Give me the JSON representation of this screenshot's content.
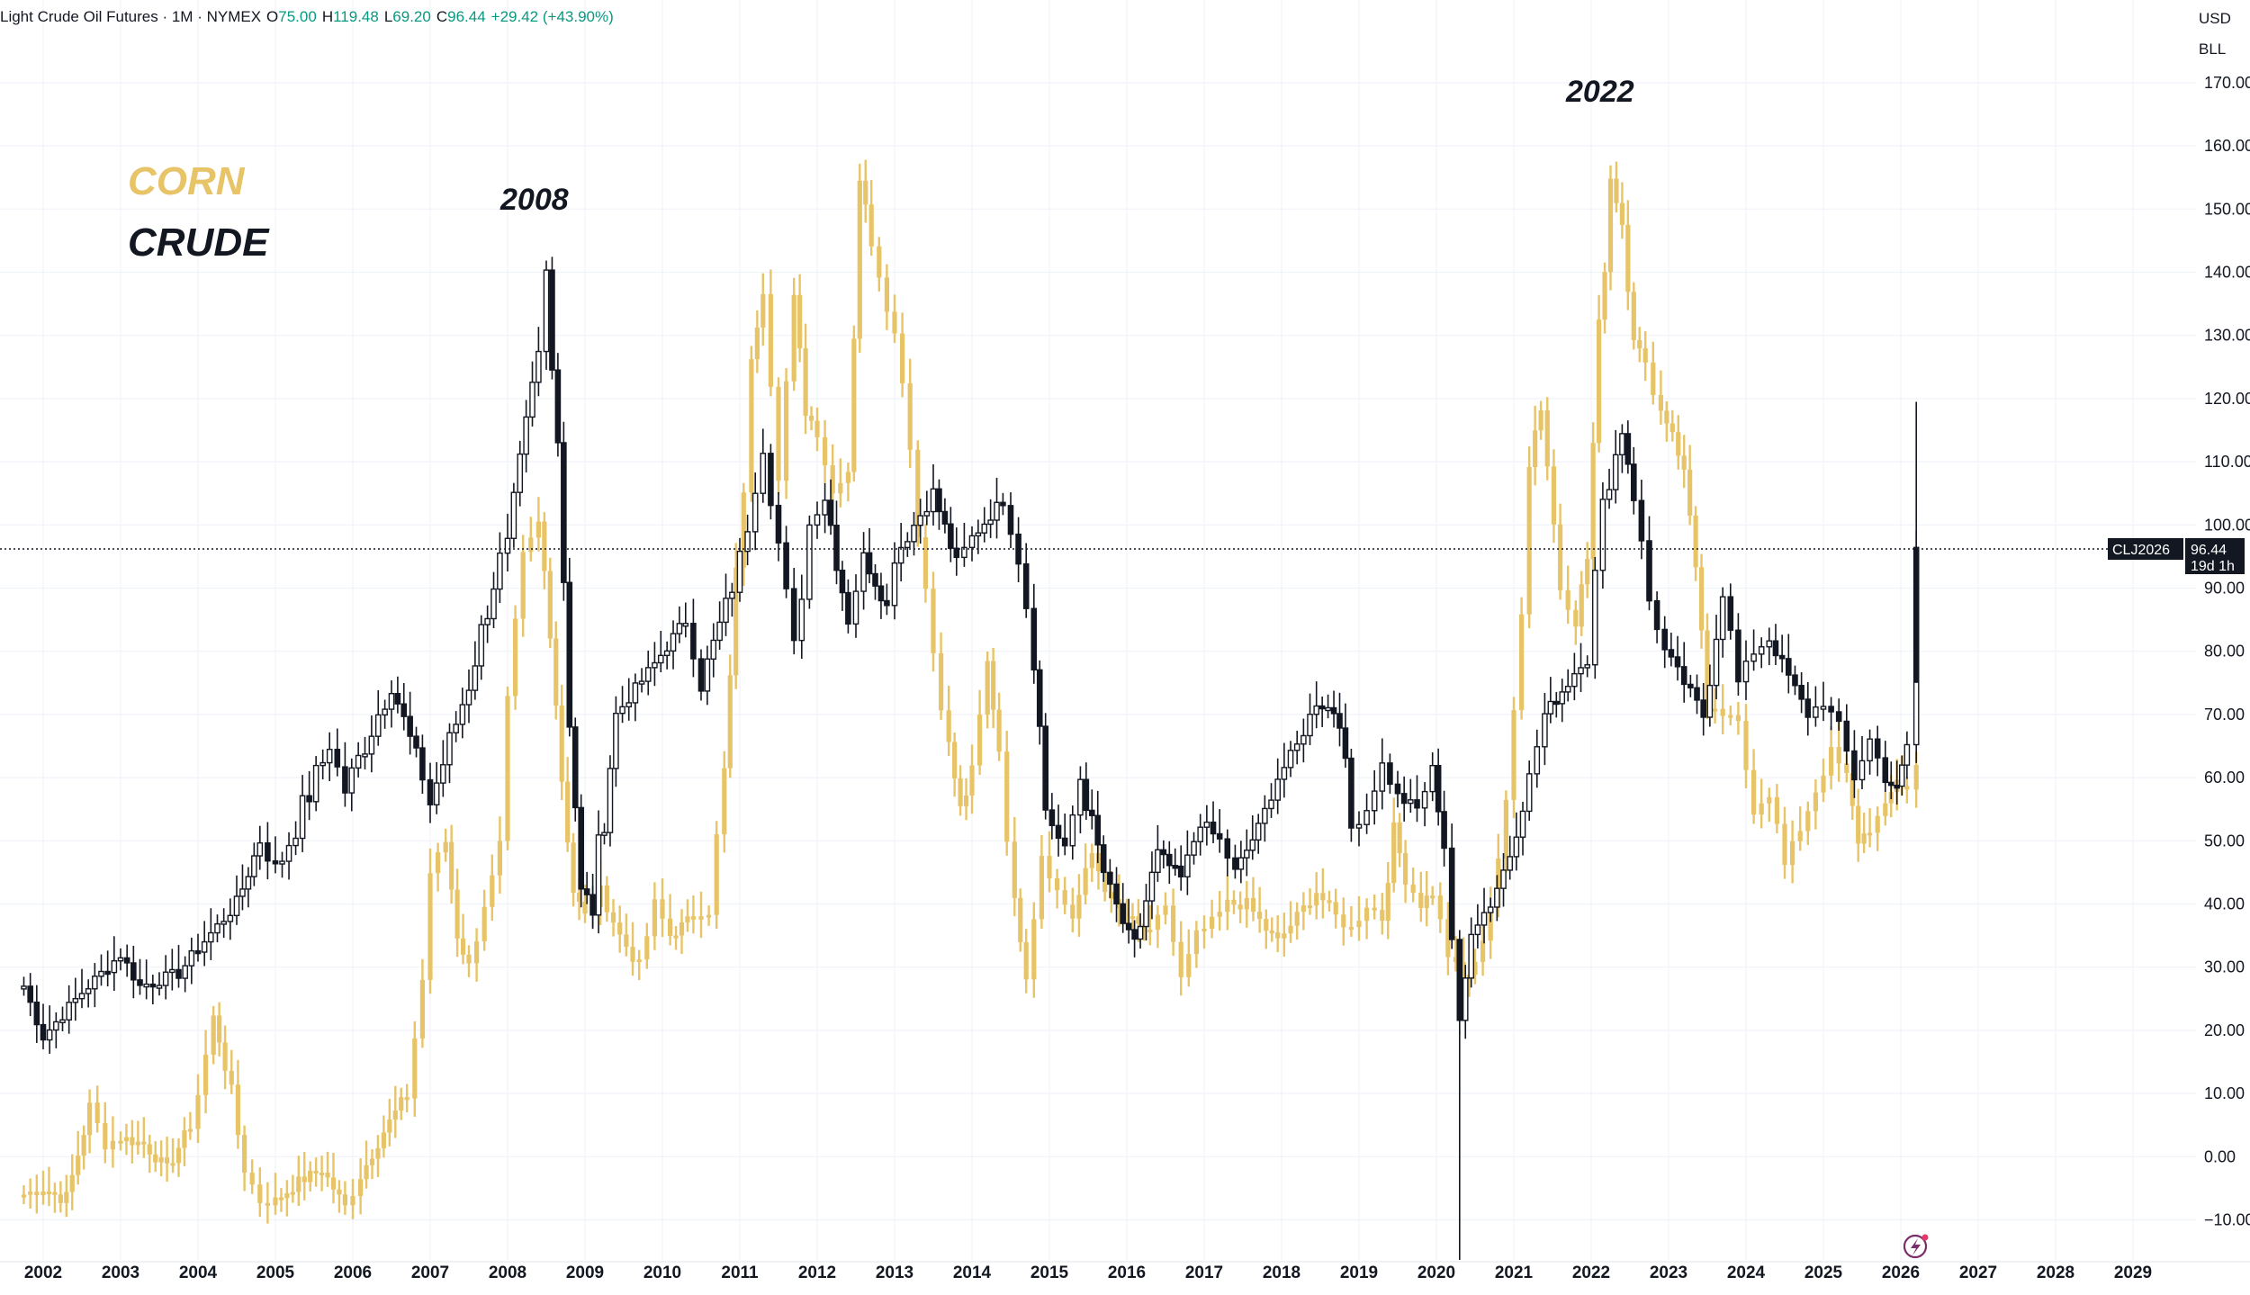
{
  "header": {
    "symbol": "Light Crude Oil Futures · 1M · NYMEX",
    "open_label": "O",
    "open": "75.00",
    "high_label": "H",
    "high": "119.48",
    "low_label": "L",
    "low": "69.20",
    "close_label": "C",
    "close": "96.44",
    "change": "+29.42 (+43.90%)"
  },
  "scale": {
    "currency": "USD",
    "unit": "BLL"
  },
  "price_tag": {
    "ticker": "CLJ2026",
    "price": "96.44",
    "countdown": "19d 1h"
  },
  "legend": {
    "corn": "CORN",
    "crude": "CRUDE"
  },
  "annotations": {
    "peak_2008": "2008",
    "peak_2022": "2022"
  },
  "colors": {
    "corn": "#e8c468",
    "crude": "#131722",
    "grid": "#f0f3fa",
    "accent": "#7b2c6b"
  },
  "icons": {
    "bottom_right": "lightning-icon"
  },
  "chart_data": {
    "type": "candlestick",
    "interval": "1M",
    "ylim": [
      -15,
      175
    ],
    "y_ticks": [
      "170.00",
      "160.00",
      "150.00",
      "140.00",
      "130.00",
      "120.00",
      "110.00",
      "100.00",
      "90.00",
      "80.00",
      "70.00",
      "60.00",
      "50.00",
      "40.00",
      "30.00",
      "20.00",
      "10.00",
      "0.00",
      "−10.00"
    ],
    "x_ticks": [
      "2002",
      "2003",
      "2004",
      "2005",
      "2006",
      "2007",
      "2008",
      "2009",
      "2010",
      "2011",
      "2012",
      "2013",
      "2014",
      "2015",
      "2016",
      "2017",
      "2018",
      "2019",
      "2020",
      "2021",
      "2022",
      "2023",
      "2024",
      "2025",
      "2026",
      "2027",
      "2028",
      "2029"
    ],
    "series": [
      {
        "name": "CRUDE",
        "style": "candles",
        "color": "#131722",
        "points": [
          [
            2001.75,
            27
          ],
          [
            2002.0,
            19
          ],
          [
            2002.5,
            26
          ],
          [
            2003.0,
            32
          ],
          [
            2003.25,
            27
          ],
          [
            2003.75,
            29
          ],
          [
            2004.0,
            33
          ],
          [
            2004.5,
            40
          ],
          [
            2004.8,
            50
          ],
          [
            2005.0,
            45
          ],
          [
            2005.7,
            65
          ],
          [
            2005.9,
            58
          ],
          [
            2006.5,
            75
          ],
          [
            2006.9,
            60
          ],
          [
            2007.0,
            56
          ],
          [
            2007.5,
            75
          ],
          [
            2007.9,
            95
          ],
          [
            2008.0,
            95
          ],
          [
            2008.4,
            127
          ],
          [
            2008.5,
            140
          ],
          [
            2008.65,
            115
          ],
          [
            2008.8,
            70
          ],
          [
            2008.95,
            42
          ],
          [
            2009.1,
            40
          ],
          [
            2009.4,
            70
          ],
          [
            2009.9,
            78
          ],
          [
            2010.3,
            85
          ],
          [
            2010.5,
            75
          ],
          [
            2010.9,
            90
          ],
          [
            2011.1,
            100
          ],
          [
            2011.3,
            113
          ],
          [
            2011.5,
            97
          ],
          [
            2011.7,
            80
          ],
          [
            2011.9,
            100
          ],
          [
            2012.1,
            105
          ],
          [
            2012.4,
            85
          ],
          [
            2012.6,
            95
          ],
          [
            2012.9,
            87
          ],
          [
            2013.0,
            95
          ],
          [
            2013.5,
            105
          ],
          [
            2013.8,
            94
          ],
          [
            2014.0,
            98
          ],
          [
            2014.4,
            104
          ],
          [
            2014.6,
            95
          ],
          [
            2014.8,
            80
          ],
          [
            2014.95,
            55
          ],
          [
            2015.2,
            48
          ],
          [
            2015.4,
            60
          ],
          [
            2015.7,
            45
          ],
          [
            2015.95,
            37
          ],
          [
            2016.1,
            33
          ],
          [
            2016.4,
            48
          ],
          [
            2016.7,
            44
          ],
          [
            2016.95,
            53
          ],
          [
            2017.2,
            50
          ],
          [
            2017.4,
            45
          ],
          [
            2017.7,
            52
          ],
          [
            2017.95,
            60
          ],
          [
            2018.2,
            65
          ],
          [
            2018.45,
            72
          ],
          [
            2018.75,
            70
          ],
          [
            2018.9,
            52
          ],
          [
            2019.1,
            55
          ],
          [
            2019.3,
            62
          ],
          [
            2019.5,
            57
          ],
          [
            2019.75,
            55
          ],
          [
            2019.95,
            61
          ],
          [
            2020.1,
            50
          ],
          [
            2020.3,
            20
          ],
          [
            2020.45,
            36
          ],
          [
            2020.7,
            40
          ],
          [
            2020.95,
            48
          ],
          [
            2021.2,
            60
          ],
          [
            2021.4,
            70
          ],
          [
            2021.7,
            75
          ],
          [
            2021.95,
            80
          ],
          [
            2022.15,
            103
          ],
          [
            2022.4,
            115
          ],
          [
            2022.55,
            105
          ],
          [
            2022.75,
            88
          ],
          [
            2022.95,
            80
          ],
          [
            2023.2,
            75
          ],
          [
            2023.45,
            70
          ],
          [
            2023.7,
            90
          ],
          [
            2023.9,
            75
          ],
          [
            2024.1,
            80
          ],
          [
            2024.3,
            82
          ],
          [
            2024.55,
            76
          ],
          [
            2024.8,
            70
          ],
          [
            2025.0,
            72
          ],
          [
            2025.2,
            68
          ],
          [
            2025.4,
            60
          ],
          [
            2025.6,
            66
          ],
          [
            2025.8,
            60
          ],
          [
            2025.95,
            58
          ],
          [
            2026.08,
            65
          ],
          [
            2026.2,
            96.44
          ]
        ]
      },
      {
        "name": "CORN",
        "style": "bars",
        "color": "#e8c468",
        "points": [
          [
            2001.75,
            -6
          ],
          [
            2002.0,
            -5
          ],
          [
            2002.3,
            -7
          ],
          [
            2002.6,
            8
          ],
          [
            2002.8,
            2
          ],
          [
            2003.0,
            3
          ],
          [
            2003.3,
            2
          ],
          [
            2003.6,
            -2
          ],
          [
            2003.9,
            5
          ],
          [
            2004.0,
            10
          ],
          [
            2004.2,
            22
          ],
          [
            2004.35,
            15
          ],
          [
            2004.6,
            -2
          ],
          [
            2004.8,
            -7
          ],
          [
            2005.0,
            -7
          ],
          [
            2005.3,
            -4
          ],
          [
            2005.6,
            -2
          ],
          [
            2005.9,
            -8
          ],
          [
            2006.1,
            -3
          ],
          [
            2006.4,
            4
          ],
          [
            2006.7,
            10
          ],
          [
            2006.9,
            28
          ],
          [
            2007.0,
            45
          ],
          [
            2007.2,
            50
          ],
          [
            2007.35,
            35
          ],
          [
            2007.5,
            30
          ],
          [
            2007.7,
            40
          ],
          [
            2007.9,
            48
          ],
          [
            2008.0,
            70
          ],
          [
            2008.2,
            95
          ],
          [
            2008.4,
            100
          ],
          [
            2008.55,
            85
          ],
          [
            2008.7,
            60
          ],
          [
            2008.85,
            42
          ],
          [
            2009.0,
            38
          ],
          [
            2009.2,
            42
          ],
          [
            2009.45,
            35
          ],
          [
            2009.7,
            30
          ],
          [
            2009.9,
            40
          ],
          [
            2010.1,
            35
          ],
          [
            2010.4,
            38
          ],
          [
            2010.6,
            40
          ],
          [
            2010.8,
            60
          ],
          [
            2010.95,
            90
          ],
          [
            2011.15,
            125
          ],
          [
            2011.3,
            140
          ],
          [
            2011.5,
            110
          ],
          [
            2011.7,
            135
          ],
          [
            2011.85,
            118
          ],
          [
            2012.0,
            115
          ],
          [
            2012.2,
            105
          ],
          [
            2012.4,
            110
          ],
          [
            2012.55,
            155
          ],
          [
            2012.7,
            145
          ],
          [
            2012.9,
            135
          ],
          [
            2013.1,
            125
          ],
          [
            2013.3,
            100
          ],
          [
            2013.5,
            80
          ],
          [
            2013.7,
            65
          ],
          [
            2013.85,
            55
          ],
          [
            2014.0,
            60
          ],
          [
            2014.2,
            78
          ],
          [
            2014.35,
            65
          ],
          [
            2014.55,
            40
          ],
          [
            2014.7,
            30
          ],
          [
            2014.9,
            48
          ],
          [
            2015.1,
            42
          ],
          [
            2015.3,
            38
          ],
          [
            2015.55,
            48
          ],
          [
            2015.8,
            40
          ],
          [
            2016.0,
            38
          ],
          [
            2016.3,
            35
          ],
          [
            2016.5,
            40
          ],
          [
            2016.7,
            28
          ],
          [
            2016.9,
            35
          ],
          [
            2017.1,
            37
          ],
          [
            2017.3,
            40
          ],
          [
            2017.55,
            40
          ],
          [
            2017.8,
            36
          ],
          [
            2017.95,
            34
          ],
          [
            2018.2,
            38
          ],
          [
            2018.45,
            42
          ],
          [
            2018.7,
            38
          ],
          [
            2018.9,
            36
          ],
          [
            2019.1,
            40
          ],
          [
            2019.3,
            38
          ],
          [
            2019.45,
            52
          ],
          [
            2019.6,
            44
          ],
          [
            2019.8,
            40
          ],
          [
            2019.95,
            42
          ],
          [
            2020.15,
            32
          ],
          [
            2020.35,
            28
          ],
          [
            2020.5,
            30
          ],
          [
            2020.7,
            40
          ],
          [
            2020.9,
            55
          ],
          [
            2021.0,
            70
          ],
          [
            2021.2,
            110
          ],
          [
            2021.35,
            120
          ],
          [
            2021.6,
            90
          ],
          [
            2021.8,
            85
          ],
          [
            2021.95,
            95
          ],
          [
            2022.1,
            130
          ],
          [
            2022.25,
            155
          ],
          [
            2022.4,
            148
          ],
          [
            2022.55,
            130
          ],
          [
            2022.7,
            125
          ],
          [
            2022.9,
            118
          ],
          [
            2023.05,
            115
          ],
          [
            2023.2,
            108
          ],
          [
            2023.35,
            95
          ],
          [
            2023.5,
            70
          ],
          [
            2023.7,
            70
          ],
          [
            2023.9,
            68
          ],
          [
            2024.1,
            55
          ],
          [
            2024.3,
            58
          ],
          [
            2024.5,
            46
          ],
          [
            2024.7,
            52
          ],
          [
            2024.9,
            58
          ],
          [
            2025.1,
            64
          ],
          [
            2025.3,
            60
          ],
          [
            2025.45,
            50
          ],
          [
            2025.6,
            52
          ],
          [
            2025.8,
            55
          ],
          [
            2025.95,
            60
          ],
          [
            2026.08,
            58
          ],
          [
            2026.2,
            62
          ]
        ]
      }
    ]
  }
}
